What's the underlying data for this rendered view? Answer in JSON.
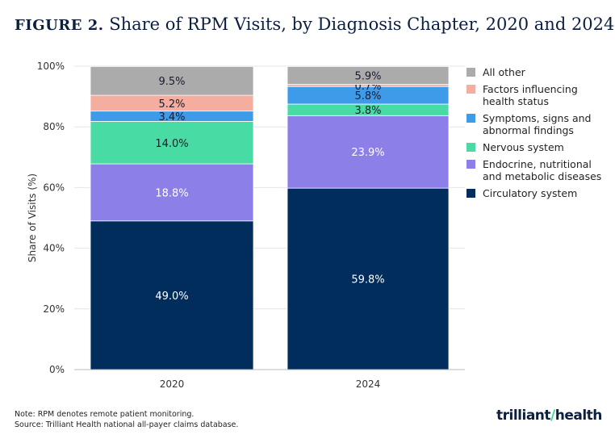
{
  "title": {
    "prefix": "FIGURE 2.",
    "text": " Share of RPM Visits, by Diagnosis Chapter, 2020 and 2024"
  },
  "chart_data": {
    "type": "bar",
    "stacked": true,
    "categories": [
      "2020",
      "2024"
    ],
    "ylabel": "Share of Visits (%)",
    "ylim": [
      0,
      100
    ],
    "yticks": [
      "0%",
      "20%",
      "40%",
      "60%",
      "80%",
      "100%"
    ],
    "legend_position": "right",
    "series": [
      {
        "name": "Circulatory system",
        "color": "#002d5c",
        "values": [
          49.0,
          59.8
        ]
      },
      {
        "name": "Endocrine, nutritional and metabolic diseases",
        "color": "#8c7fe8",
        "values": [
          18.8,
          23.9
        ]
      },
      {
        "name": "Nervous system",
        "color": "#48dba3",
        "values": [
          14.0,
          3.8
        ]
      },
      {
        "name": "Symptoms, signs and abnormal findings",
        "color": "#3d9be9",
        "values": [
          3.4,
          5.8
        ]
      },
      {
        "name": "Factors influencing health status",
        "color": "#f5ada0",
        "values": [
          5.2,
          0.7
        ]
      },
      {
        "name": "All other",
        "color": "#ababab",
        "values": [
          9.5,
          5.9
        ]
      }
    ]
  },
  "footer": {
    "note": "Note: RPM denotes remote patient monitoring.",
    "source": "Source: Trilliant Health national all-payer claims database.",
    "logo": "trilliant health"
  }
}
